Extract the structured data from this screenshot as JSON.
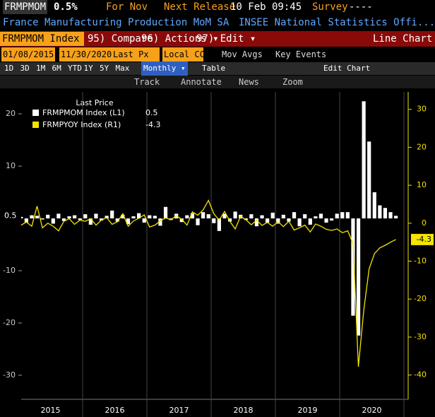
{
  "header": {
    "ticker": "FRMPMOM",
    "last": "0.5%",
    "period": "For Nov",
    "next_release_label": "Next Release",
    "next_release": "10 Feb 09:45",
    "survey_label": "Survey",
    "survey": "----",
    "name": "France Manufacturing Production MoM SA",
    "source": "INSEE National Statistics Offi..."
  },
  "toolbar": {
    "security": "FRMPMOM Index",
    "compare": "95) Compare",
    "actions": "96) Actions ▾",
    "edit": "97) Edit ▾",
    "chart_type": "Line Chart",
    "start_date": "01/08/2015",
    "end_date": "11/30/2020",
    "field": "Last Px",
    "currency": "Local CCY",
    "mov_avgs": "Mov Avgs",
    "key_events": "Key Events",
    "periods": [
      "1D",
      "3D",
      "1M",
      "6M",
      "YTD",
      "1Y",
      "5Y",
      "Max"
    ],
    "frequency": "Monthly ▾",
    "table": "Table",
    "edit_chart": "Edit Chart",
    "tools": [
      "Track",
      "Annotate",
      "News",
      "Zoom"
    ]
  },
  "chart_data": {
    "type": "bar_line",
    "legend_title": "Last Price",
    "x_labels": [
      "2015",
      "2016",
      "2017",
      "2018",
      "2019",
      "2020"
    ],
    "ylim": [
      -34.6,
      24.2
    ],
    "yticks": [
      -30,
      -20,
      -10,
      10,
      20
    ],
    "y2lim": [
      -46.4,
      34.6
    ],
    "y2ticks": [
      -40,
      -30,
      -20,
      -10,
      0,
      10,
      20,
      30
    ],
    "series": [
      {
        "name": "FRMPMOM Index  (L1)",
        "color": "#ffffff",
        "type": "bar",
        "axis": "y",
        "values": [
          0.3,
          -0.8,
          0.6,
          0.5,
          -0.2,
          0.7,
          -1.0,
          0.9,
          -0.5,
          0.4,
          0.6,
          -0.3,
          0.8,
          -1.2,
          0.9,
          -0.4,
          0.5,
          1.5,
          -0.6,
          0.7,
          -1.1,
          0.4,
          1.0,
          -0.8,
          0.6,
          0.5,
          -1.4,
          2.2,
          -0.3,
          0.9,
          -0.7,
          0.6,
          1.0,
          -1.3,
          1.2,
          0.8,
          -0.9,
          -2.4,
          0.9,
          -0.6,
          1.3,
          0.7,
          -0.3,
          0.8,
          -1.5,
          0.6,
          -0.8,
          1.1,
          -1.0,
          0.7,
          -0.6,
          1.2,
          -1.5,
          0.8,
          -1.2,
          0.4,
          0.9,
          -0.8,
          -0.4,
          0.9,
          1.2,
          1.2,
          -18.6,
          -22.4,
          22.4,
          14.7,
          5.0,
          2.5,
          2.0,
          1.2,
          0.5
        ]
      },
      {
        "name": "FRMPYOY Index  (R1)",
        "color": "#f5e400",
        "type": "line",
        "axis": "y2",
        "values": [
          -0.5,
          0.3,
          -0.8,
          4.5,
          -1.2,
          0.0,
          -0.8,
          -2.0,
          0.5,
          1.2,
          -0.3,
          0.8,
          0.5,
          1.2,
          -0.5,
          0.8,
          1.5,
          -0.3,
          0.4,
          2.5,
          -0.8,
          0.6,
          1.3,
          2.2,
          -1.0,
          -0.5,
          0.6,
          1.4,
          0.9,
          2.0,
          1.0,
          -0.5,
          3.0,
          2.1,
          3.5,
          6.0,
          2.5,
          0.8,
          3.1,
          0.5,
          -1.5,
          1.8,
          0.9,
          -0.4,
          0.8,
          -0.6,
          0.2,
          -0.8,
          0.4,
          -0.9,
          0.5,
          -1.8,
          -1.2,
          -0.5,
          -2.3,
          -0.2,
          -0.8,
          -1.6,
          -1.9,
          -1.5,
          -2.5,
          -2.0,
          -5.4,
          -37.8,
          -23.0,
          -12.0,
          -8.0,
          -6.5,
          -5.8,
          -5.0,
          -4.3
        ]
      }
    ]
  }
}
